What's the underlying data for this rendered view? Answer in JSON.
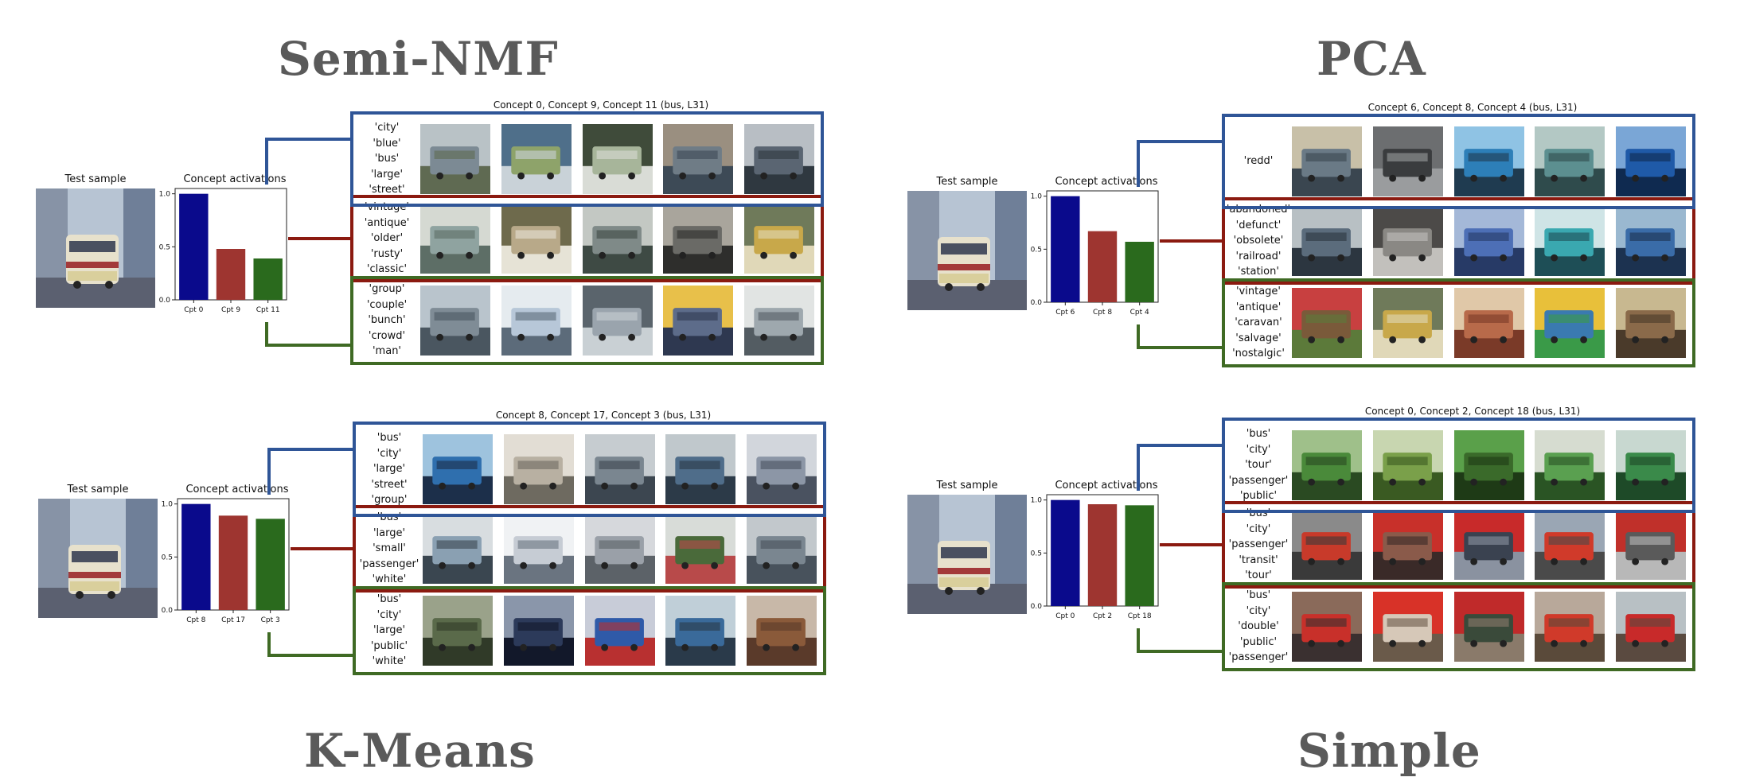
{
  "titles": {
    "tl": "Semi-NMF",
    "tr": "PCA",
    "bl": "K-Means",
    "br": "Simple"
  },
  "test_label": "Test sample",
  "activations_label": "Concept activations",
  "colors": {
    "c1": "#0a0a8c",
    "c2": "#9e3530",
    "c3": "#2a6a1d",
    "box1": "#2f5597",
    "box2": "#8b1a10",
    "box3": "#3f6a24"
  },
  "panels": {
    "semi_nmf": {
      "header": "Concept 0, Concept 9, Concept 11 (bus, L31)",
      "chart_data": {
        "type": "bar",
        "categories": [
          "Cpt 0",
          "Cpt 9",
          "Cpt 11"
        ],
        "values": [
          1.0,
          0.48,
          0.39
        ],
        "ylim": [
          0,
          1.05
        ],
        "yticks": [
          "0.0",
          "0.5",
          "1.0"
        ]
      },
      "concepts": [
        {
          "words": [
            "'city'",
            "'blue'",
            "'bus'",
            "'large'",
            "'street'"
          ]
        },
        {
          "words": [
            "'vintage'",
            "'antique'",
            "'older'",
            "'rusty'",
            "'classic'"
          ]
        },
        {
          "words": [
            "'group'",
            "'couple'",
            "'bunch'",
            "'crowd'",
            "'man'"
          ]
        }
      ]
    },
    "pca": {
      "header": "Concept 6, Concept 8, Concept 4 (bus, L31)",
      "chart_data": {
        "type": "bar",
        "categories": [
          "Cpt 6",
          "Cpt 8",
          "Cpt 4"
        ],
        "values": [
          1.0,
          0.67,
          0.57
        ],
        "ylim": [
          0,
          1.05
        ],
        "yticks": [
          "0.0",
          "0.5",
          "1.0"
        ]
      },
      "concepts": [
        {
          "words": [
            "'redd'"
          ]
        },
        {
          "words": [
            "'abandoned'",
            "'defunct'",
            "'obsolete'",
            "'railroad'",
            "'station'"
          ]
        },
        {
          "words": [
            "'vintage'",
            "'antique'",
            "'caravan'",
            "'salvage'",
            "'nostalgic'"
          ]
        }
      ]
    },
    "kmeans": {
      "header": "Concept 8, Concept 17, Concept 3 (bus, L31)",
      "chart_data": {
        "type": "bar",
        "categories": [
          "Cpt 8",
          "Cpt 17",
          "Cpt 3"
        ],
        "values": [
          1.0,
          0.89,
          0.86
        ],
        "ylim": [
          0,
          1.05
        ],
        "yticks": [
          "0.0",
          "0.5",
          "1.0"
        ]
      },
      "concepts": [
        {
          "words": [
            "'bus'",
            "'city'",
            "'large'",
            "'street'",
            "'group'"
          ]
        },
        {
          "words": [
            "'bus'",
            "'large'",
            "'small'",
            "'passenger'",
            "'white'"
          ]
        },
        {
          "words": [
            "'bus'",
            "'city'",
            "'large'",
            "'public'",
            "'white'"
          ]
        }
      ]
    },
    "simple": {
      "header": "Concept 0, Concept 2, Concept 18 (bus, L31)",
      "chart_data": {
        "type": "bar",
        "categories": [
          "Cpt 0",
          "Cpt 2",
          "Cpt 18"
        ],
        "values": [
          1.0,
          0.96,
          0.95
        ],
        "ylim": [
          0,
          1.05
        ],
        "yticks": [
          "0.0",
          "0.5",
          "1.0"
        ]
      },
      "concepts": [
        {
          "words": [
            "'bus'",
            "'city'",
            "'tour'",
            "'passenger'",
            "'public'"
          ]
        },
        {
          "words": [
            "'bus'",
            "'city'",
            "'passenger'",
            "'transit'",
            "'tour'"
          ]
        },
        {
          "words": [
            "'bus'",
            "'city'",
            "'double'",
            "'public'",
            "'passenger'"
          ]
        }
      ]
    }
  },
  "thumb_palettes": {
    "semi_nmf": [
      [
        "#7c8a94",
        "#b9c2c6",
        "#5f6a52"
      ],
      [
        "#8ea36a",
        "#4f6f8a",
        "#c9d2d8"
      ],
      [
        "#a7b59a",
        "#3f4b3a",
        "#d9dcd6"
      ],
      [
        "#6f7c86",
        "#9a8f80",
        "#3d4a56"
      ],
      [
        "#5a6572",
        "#b8bec4",
        "#2f3840"
      ],
      [
        "#8fa3a0",
        "#d5d9d2",
        "#5d6e66"
      ],
      [
        "#b8a989",
        "#6e6a4c",
        "#e6e3d6"
      ],
      [
        "#7f8a88",
        "#c3c8c3",
        "#3e4a44"
      ],
      [
        "#6a6a66",
        "#a9a59c",
        "#2e2e2c"
      ],
      [
        "#c8a84a",
        "#6f7a5a",
        "#e0d8b8"
      ],
      [
        "#7f8c96",
        "#b9c4cc",
        "#4a5660"
      ],
      [
        "#b7c7d8",
        "#e5ebef",
        "#5c6b7a"
      ],
      [
        "#9aa4ad",
        "#5a646c",
        "#c9d0d4"
      ],
      [
        "#5d6c8a",
        "#e8c04a",
        "#2e3850"
      ],
      [
        "#9ea8ae",
        "#e1e4e3",
        "#535c62"
      ]
    ],
    "pca": [
      [
        "#6a7a86",
        "#c8c0a8",
        "#3a4650"
      ],
      [
        "#3a3c3e",
        "#6c6e70",
        "#9a9c9e"
      ],
      [
        "#2d7fb8",
        "#8fc3e4",
        "#1f3b50"
      ],
      [
        "#5c8f90",
        "#b3c8c4",
        "#2f4b4c"
      ],
      [
        "#1f5aa8",
        "#7aa6d6",
        "#0f2a50"
      ],
      [
        "#5b6c7c",
        "#b8c0c4",
        "#2c3640"
      ],
      [
        "#8a8884",
        "#4c4a48",
        "#c2c0bc"
      ],
      [
        "#4d6fb6",
        "#a4b8d8",
        "#273a66"
      ],
      [
        "#3aa8b0",
        "#cfe4e6",
        "#1e4e56"
      ],
      [
        "#3a6ca8",
        "#9ab8d0",
        "#1c3250"
      ],
      [
        "#7a5a3a",
        "#c84040",
        "#5c7a3a"
      ],
      [
        "#c8a84a",
        "#6f7a5a",
        "#e0d8b8"
      ],
      [
        "#b86a4a",
        "#e0c8a8",
        "#7a3a28"
      ],
      [
        "#3a7ab0",
        "#e8c03a",
        "#3a9a48"
      ],
      [
        "#8a6a4a",
        "#c8b890",
        "#4a3a2a"
      ]
    ],
    "kmeans": [
      [
        "#2f6fae",
        "#9ec3de",
        "#1c2f4a"
      ],
      [
        "#b8b0a2",
        "#e2ddd4",
        "#6e6a60"
      ],
      [
        "#7a8690",
        "#c6ccd0",
        "#3c4650"
      ],
      [
        "#4f6d8a",
        "#c0c8cc",
        "#2c3a48"
      ],
      [
        "#8c96a6",
        "#d2d6dc",
        "#4a5260"
      ],
      [
        "#8aa0b2",
        "#d8dde0",
        "#3a4650"
      ],
      [
        "#c6ccd4",
        "#f0f2f4",
        "#6a7480"
      ],
      [
        "#9aa0a8",
        "#d6d8dc",
        "#5c6268"
      ],
      [
        "#4a6a3a",
        "#d8dcd8",
        "#b84a4a"
      ],
      [
        "#7a8690",
        "#c2c8cc",
        "#48525c"
      ],
      [
        "#5a6a4a",
        "#9aa28a",
        "#303a28"
      ],
      [
        "#2c3a5a",
        "#8a96aa",
        "#12182a"
      ],
      [
        "#2f5aa8",
        "#c8ccd8",
        "#b83030"
      ],
      [
        "#3a6a9a",
        "#c0cfd8",
        "#2a3a4a"
      ],
      [
        "#8a5a3a",
        "#c8b8a8",
        "#5a3a2a"
      ]
    ],
    "simple": [
      [
        "#4a8a3a",
        "#9fc08a",
        "#2a4a22"
      ],
      [
        "#7aa04a",
        "#c8d6b0",
        "#3a5a22"
      ],
      [
        "#3a6a2a",
        "#5aa04a",
        "#1e3a16"
      ],
      [
        "#5aa050",
        "#d6dcd0",
        "#2a5424"
      ],
      [
        "#3a8a4a",
        "#c8d8d0",
        "#1e4a28"
      ],
      [
        "#c83a2a",
        "#8a8a8a",
        "#3a3a3a"
      ],
      [
        "#8a5a4a",
        "#c8302a",
        "#3a2a28"
      ],
      [
        "#3a4250",
        "#c82a2a",
        "#8a92a0"
      ],
      [
        "#d03a2a",
        "#9aa6b4",
        "#4a4a4a"
      ],
      [
        "#5a5a5a",
        "#c0302a",
        "#b8b8b8"
      ],
      [
        "#c8302a",
        "#8a6a5a",
        "#3a3030"
      ],
      [
        "#d6c8b8",
        "#d83228",
        "#6a5a4a"
      ],
      [
        "#3a4a3a",
        "#c02a2a",
        "#8a7a6a"
      ],
      [
        "#d03a2a",
        "#b8a89a",
        "#5a4a3a"
      ],
      [
        "#c82a2a",
        "#b8c0c4",
        "#5a4a40"
      ]
    ]
  }
}
